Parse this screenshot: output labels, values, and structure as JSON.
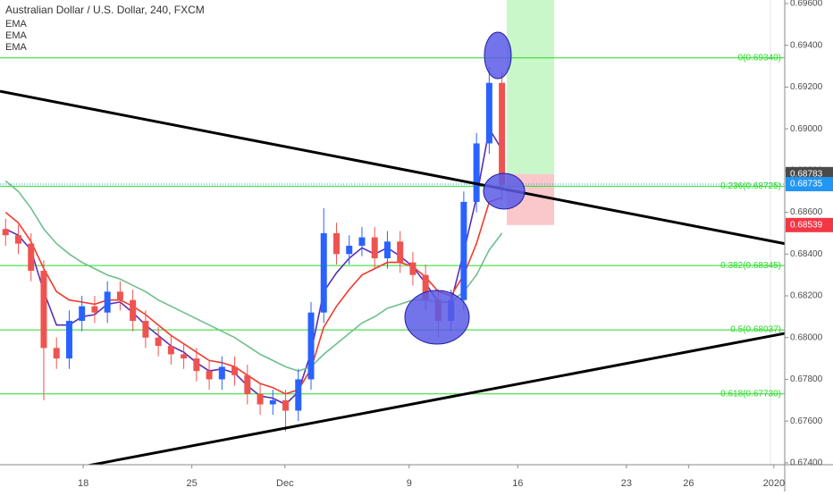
{
  "chart_data": {
    "type": "candlestick",
    "title": "Australian Dollar / U.S. Dollar, 240, FXCM",
    "up_color": "#2962ff",
    "down_color": "#ef5350",
    "x": [
      13.0,
      13.82,
      14.64,
      15.46,
      16.28,
      17.1,
      17.92,
      18.74,
      19.56,
      20.38,
      21.2,
      22.02,
      22.84,
      23.66,
      24.48,
      25.3,
      26.12,
      26.94,
      27.76,
      28.58,
      29.4,
      30.22,
      31.04,
      31.86,
      32.68,
      33.5,
      34.32,
      35.14,
      35.96,
      36.78,
      37.6,
      38.42,
      39.24,
      40.06,
      40.88,
      41.7,
      42.52,
      43.34,
      44.16,
      44.98
    ],
    "open": [
      0.6852,
      0.6849,
      0.6845,
      0.6832,
      0.6795,
      0.679,
      0.6808,
      0.6815,
      0.6812,
      0.6822,
      0.6818,
      0.6808,
      0.68,
      0.6796,
      0.6792,
      0.679,
      0.6784,
      0.678,
      0.6786,
      0.6782,
      0.6773,
      0.6768,
      0.677,
      0.6765,
      0.678,
      0.6812,
      0.685,
      0.684,
      0.6844,
      0.6848,
      0.6838,
      0.6846,
      0.6836,
      0.683,
      0.6818,
      0.6808,
      0.6818,
      0.6865,
      0.6893,
      0.6922
    ],
    "high": [
      0.6857,
      0.6854,
      0.685,
      0.6837,
      0.68,
      0.6813,
      0.682,
      0.682,
      0.6827,
      0.6827,
      0.6823,
      0.6813,
      0.6805,
      0.6801,
      0.6797,
      0.6795,
      0.6789,
      0.6791,
      0.6791,
      0.6787,
      0.6778,
      0.6775,
      0.6775,
      0.6785,
      0.6817,
      0.6862,
      0.6855,
      0.6849,
      0.6853,
      0.6853,
      0.6851,
      0.6851,
      0.6841,
      0.6835,
      0.6823,
      0.6823,
      0.687,
      0.6898,
      0.693,
      0.6927
    ],
    "low": [
      0.6844,
      0.684,
      0.6827,
      0.677,
      0.6785,
      0.6785,
      0.6803,
      0.6807,
      0.6807,
      0.6813,
      0.6803,
      0.6795,
      0.6791,
      0.6787,
      0.6785,
      0.6779,
      0.6775,
      0.6775,
      0.6777,
      0.6768,
      0.6763,
      0.6763,
      0.6755,
      0.676,
      0.6775,
      0.6807,
      0.6835,
      0.6835,
      0.6839,
      0.6833,
      0.6833,
      0.6831,
      0.6825,
      0.6813,
      0.68,
      0.6803,
      0.6813,
      0.686,
      0.6888,
      0.6866
    ],
    "close": [
      0.6849,
      0.6845,
      0.6832,
      0.6795,
      0.679,
      0.6808,
      0.6815,
      0.6812,
      0.6822,
      0.6818,
      0.6808,
      0.68,
      0.6796,
      0.6792,
      0.679,
      0.6784,
      0.678,
      0.6786,
      0.6782,
      0.6773,
      0.6768,
      0.677,
      0.6765,
      0.678,
      0.6812,
      0.685,
      0.684,
      0.6844,
      0.6848,
      0.6838,
      0.6846,
      0.6836,
      0.683,
      0.6818,
      0.6808,
      0.6818,
      0.6865,
      0.6893,
      0.6922,
      0.6873
    ],
    "series": [
      {
        "name": "EMA",
        "color": "#5b2fb5",
        "values": [
          0.6852,
          0.6849,
          0.6842,
          0.6822,
          0.6806,
          0.6806,
          0.681,
          0.6811,
          0.6816,
          0.6817,
          0.6812,
          0.6806,
          0.6801,
          0.6796,
          0.6793,
          0.6788,
          0.6784,
          0.6785,
          0.6783,
          0.6777,
          0.6772,
          0.6771,
          0.6768,
          0.6774,
          0.6793,
          0.6822,
          0.6831,
          0.6838,
          0.6843,
          0.684,
          0.6843,
          0.6839,
          0.6834,
          0.6826,
          0.6817,
          0.6817,
          0.6841,
          0.6867,
          0.69,
          0.689
        ]
      },
      {
        "name": "EMA",
        "color": "#f23a2e",
        "values": [
          0.686,
          0.6855,
          0.6846,
          0.6833,
          0.6822,
          0.6818,
          0.6817,
          0.6816,
          0.6818,
          0.6818,
          0.6815,
          0.6811,
          0.6806,
          0.6801,
          0.6797,
          0.6793,
          0.6789,
          0.6788,
          0.6786,
          0.6782,
          0.6778,
          0.6776,
          0.6773,
          0.6775,
          0.6785,
          0.6805,
          0.6815,
          0.6823,
          0.683,
          0.6833,
          0.6836,
          0.6836,
          0.6834,
          0.6829,
          0.6822,
          0.682,
          0.683,
          0.6845,
          0.6865,
          0.6867
        ]
      },
      {
        "name": "EMA",
        "color": "#6fbf8a",
        "values": [
          0.6875,
          0.687,
          0.6862,
          0.6852,
          0.6845,
          0.684,
          0.6836,
          0.6833,
          0.683,
          0.6828,
          0.6825,
          0.6822,
          0.6818,
          0.6815,
          0.6812,
          0.6809,
          0.6806,
          0.6803,
          0.68,
          0.6796,
          0.6792,
          0.6789,
          0.6786,
          0.6784,
          0.6786,
          0.6792,
          0.6797,
          0.6802,
          0.6807,
          0.681,
          0.6814,
          0.6816,
          0.6818,
          0.6818,
          0.6817,
          0.6817,
          0.6822,
          0.683,
          0.6842,
          0.685
        ]
      }
    ],
    "xlim": [
      12.64,
      63.2
    ],
    "xticks": [
      {
        "value": 18,
        "label": "18"
      },
      {
        "value": 25,
        "label": "25"
      },
      {
        "value": 31,
        "label": "Dec"
      },
      {
        "value": 39,
        "label": "9"
      },
      {
        "value": 46,
        "label": "16"
      },
      {
        "value": 53,
        "label": "23"
      },
      {
        "value": 57,
        "label": "26"
      },
      {
        "value": 62.5,
        "label": "2020"
      }
    ],
    "ylim": [
      0.67391,
      0.69617
    ],
    "yticks": [
      {
        "value": 0.674,
        "label": "0.67400"
      },
      {
        "value": 0.676,
        "label": "0.67600"
      },
      {
        "value": 0.678,
        "label": "0.67800"
      },
      {
        "value": 0.68,
        "label": "0.68000"
      },
      {
        "value": 0.682,
        "label": "0.68200"
      },
      {
        "value": 0.684,
        "label": "0.68400"
      },
      {
        "value": 0.686,
        "label": "0.68600"
      },
      {
        "value": 0.688,
        "label": "0.68800"
      },
      {
        "value": 0.69,
        "label": "0.69000"
      },
      {
        "value": 0.692,
        "label": "0.69200"
      },
      {
        "value": 0.694,
        "label": "0.69400"
      },
      {
        "value": 0.696,
        "label": "0.69600"
      }
    ],
    "fib_levels": [
      {
        "label": "0(0.69340)",
        "value": 0.6934
      },
      {
        "label": "0.236(0.68725)",
        "value": 0.68725
      },
      {
        "label": "0.382(0.68345)",
        "value": 0.68345
      },
      {
        "label": "0.5(0.68037)",
        "value": 0.68037
      },
      {
        "label": "0.618(0.67730)",
        "value": 0.6773
      }
    ],
    "fib_color": "#22dd22",
    "trendlines": [
      {
        "x": [
          12.64,
          63.2
        ],
        "y": [
          0.6918,
          0.6845
        ]
      },
      {
        "x": [
          16.4,
          63.2
        ],
        "y": [
          0.6736,
          0.6802
        ]
      }
    ],
    "position": {
      "entry": 0.68783,
      "stop": 0.68539
    },
    "price_tags": [
      {
        "value": 0.68783,
        "color": "#4a4a4a"
      },
      {
        "value": 0.68735,
        "color": "#2196f3"
      },
      {
        "value": 0.68539,
        "color": "#f23645"
      }
    ]
  }
}
